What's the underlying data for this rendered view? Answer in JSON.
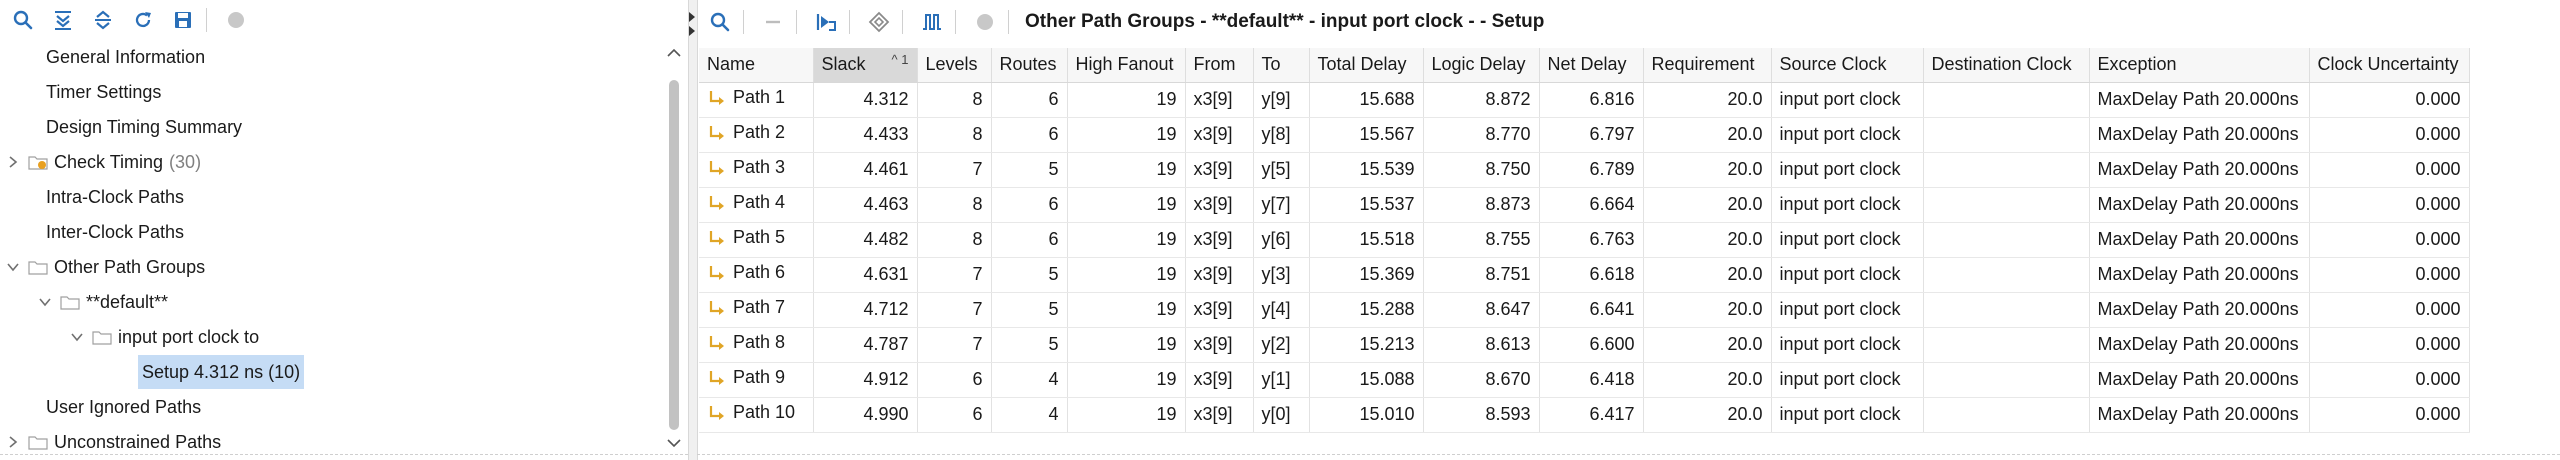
{
  "left_toolbar": {
    "buttons": [
      "search-icon",
      "collapse-all-icon",
      "expand-all-icon",
      "refresh-icon",
      "save-icon",
      "stop-icon"
    ]
  },
  "tree": {
    "items": [
      {
        "label": "General Information",
        "count": ""
      },
      {
        "label": "Timer Settings",
        "count": ""
      },
      {
        "label": "Design Timing Summary",
        "count": ""
      },
      {
        "label": "Check Timing",
        "count": "(30)"
      },
      {
        "label": "Intra-Clock Paths",
        "count": ""
      },
      {
        "label": "Inter-Clock Paths",
        "count": ""
      },
      {
        "label": "Other Path Groups",
        "count": ""
      },
      {
        "label": "**default**",
        "count": ""
      },
      {
        "label": "input port clock to",
        "count": ""
      },
      {
        "label": "Setup 4.312 ns (10)",
        "count": ""
      },
      {
        "label": "User Ignored Paths",
        "count": ""
      },
      {
        "label": "Unconstrained Paths",
        "count": ""
      }
    ]
  },
  "right_toolbar": {
    "title": "Other Path Groups - **default** - input port clock -  - Setup"
  },
  "table": {
    "sort_indicator": "^ 1",
    "columns": [
      "Name",
      "Slack",
      "Levels",
      "Routes",
      "High Fanout",
      "From",
      "To",
      "Total Delay",
      "Logic Delay",
      "Net Delay",
      "Requirement",
      "Source Clock",
      "Destination Clock",
      "Exception",
      "Clock Uncertainty"
    ],
    "rows": [
      [
        "Path 1",
        "4.312",
        "8",
        "6",
        "19",
        "x3[9]",
        "y[9]",
        "15.688",
        "8.872",
        "6.816",
        "20.0",
        "input port clock",
        "",
        "MaxDelay Path 20.000ns",
        "0.000"
      ],
      [
        "Path 2",
        "4.433",
        "8",
        "6",
        "19",
        "x3[9]",
        "y[8]",
        "15.567",
        "8.770",
        "6.797",
        "20.0",
        "input port clock",
        "",
        "MaxDelay Path 20.000ns",
        "0.000"
      ],
      [
        "Path 3",
        "4.461",
        "7",
        "5",
        "19",
        "x3[9]",
        "y[5]",
        "15.539",
        "8.750",
        "6.789",
        "20.0",
        "input port clock",
        "",
        "MaxDelay Path 20.000ns",
        "0.000"
      ],
      [
        "Path 4",
        "4.463",
        "8",
        "6",
        "19",
        "x3[9]",
        "y[7]",
        "15.537",
        "8.873",
        "6.664",
        "20.0",
        "input port clock",
        "",
        "MaxDelay Path 20.000ns",
        "0.000"
      ],
      [
        "Path 5",
        "4.482",
        "8",
        "6",
        "19",
        "x3[9]",
        "y[6]",
        "15.518",
        "8.755",
        "6.763",
        "20.0",
        "input port clock",
        "",
        "MaxDelay Path 20.000ns",
        "0.000"
      ],
      [
        "Path 6",
        "4.631",
        "7",
        "5",
        "19",
        "x3[9]",
        "y[3]",
        "15.369",
        "8.751",
        "6.618",
        "20.0",
        "input port clock",
        "",
        "MaxDelay Path 20.000ns",
        "0.000"
      ],
      [
        "Path 7",
        "4.712",
        "7",
        "5",
        "19",
        "x3[9]",
        "y[4]",
        "15.288",
        "8.647",
        "6.641",
        "20.0",
        "input port clock",
        "",
        "MaxDelay Path 20.000ns",
        "0.000"
      ],
      [
        "Path 8",
        "4.787",
        "7",
        "5",
        "19",
        "x3[9]",
        "y[2]",
        "15.213",
        "8.613",
        "6.600",
        "20.0",
        "input port clock",
        "",
        "MaxDelay Path 20.000ns",
        "0.000"
      ],
      [
        "Path 9",
        "4.912",
        "6",
        "4",
        "19",
        "x3[9]",
        "y[1]",
        "15.088",
        "8.670",
        "6.418",
        "20.0",
        "input port clock",
        "",
        "MaxDelay Path 20.000ns",
        "0.000"
      ],
      [
        "Path 10",
        "4.990",
        "6",
        "4",
        "19",
        "x3[9]",
        "y[0]",
        "15.010",
        "8.593",
        "6.417",
        "20.0",
        "input port clock",
        "",
        "MaxDelay Path 20.000ns",
        "0.000"
      ]
    ]
  },
  "colors": {
    "selection": "#c5dcf5",
    "icon_blue": "#2a6fb8",
    "path_icon": "#e0a526",
    "sorted_header": "#d9d9d9"
  }
}
